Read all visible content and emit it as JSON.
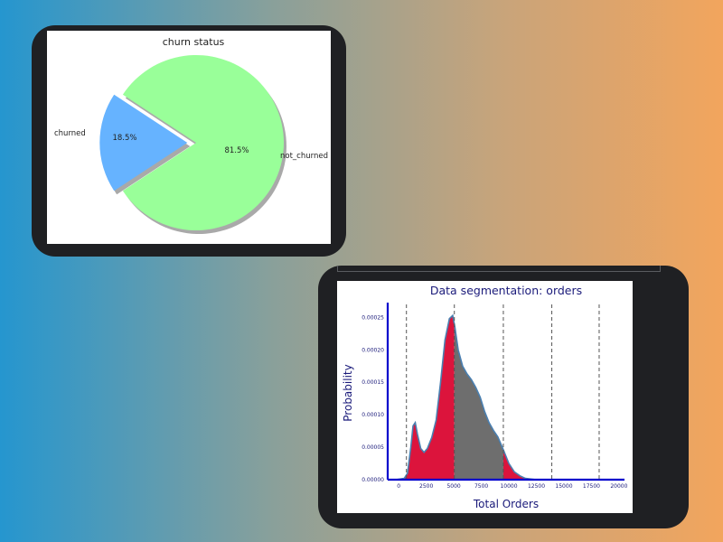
{
  "chart_data": [
    {
      "type": "pie",
      "title": "churn status",
      "slices": [
        {
          "label": "churned",
          "value": 18.5,
          "pct_label": "18.5%",
          "color": "#66b3ff"
        },
        {
          "label": "not_churned",
          "value": 81.5,
          "pct_label": "81.5%",
          "color": "#99ff99"
        }
      ],
      "shadow": true,
      "explode": "churned"
    },
    {
      "type": "area",
      "title": "Data segmentation: orders",
      "xlabel": "Total Orders",
      "ylabel": "Probability",
      "xlim": [
        -1000,
        20500
      ],
      "ylim": [
        0,
        0.00027
      ],
      "xticks": [
        0,
        2500,
        5000,
        7500,
        10000,
        12500,
        15000,
        17500,
        20000
      ],
      "yticks": [
        "0.00000",
        "0.00005",
        "0.00010",
        "0.00015",
        "0.00020",
        "0.00025"
      ],
      "ytick_values": [
        0,
        5e-05,
        0.0001,
        0.00015,
        0.0002,
        0.00025
      ],
      "segment_lines": [
        700,
        5050,
        9500,
        13900,
        18200
      ],
      "segment_colors": [
        "#dc143c",
        "#dc143c",
        "#6e6e6e",
        "#dc143c",
        "#dc143c"
      ],
      "x": [
        -300,
        500,
        800,
        1100,
        1300,
        1500,
        1700,
        2000,
        2300,
        2600,
        3000,
        3400,
        3800,
        4200,
        4600,
        4900,
        5100,
        5400,
        5800,
        6200,
        6600,
        7000,
        7400,
        7800,
        8200,
        8600,
        9000,
        9500,
        10000,
        10500,
        11000,
        11500,
        12000,
        12500
      ],
      "y": [
        0,
        2e-06,
        1e-05,
        5e-05,
        8.3e-05,
        8.8e-05,
        7e-05,
        4.8e-05,
        4.2e-05,
        4.8e-05,
        6.5e-05,
        9.2e-05,
        0.00015,
        0.000215,
        0.000248,
        0.000253,
        0.000235,
        0.0002,
        0.000175,
        0.000163,
        0.000154,
        0.000142,
        0.000127,
        0.000105,
        8.8e-05,
        7.6e-05,
        6.6e-05,
        4.6e-05,
        2.5e-05,
        1.2e-05,
        6e-06,
        2e-06,
        1e-06,
        0
      ]
    }
  ]
}
